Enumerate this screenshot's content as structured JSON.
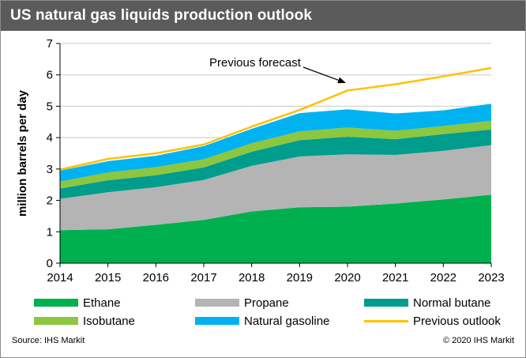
{
  "header": {
    "title": "US natural gas liquids production outlook"
  },
  "footer": {
    "source": "Source: IHS Markit",
    "copyright": "© 2020 IHS Markit"
  },
  "colors": {
    "ethane": "#00b04f",
    "propane": "#b4b4b4",
    "normal_butane": "#009d8c",
    "isobutane": "#8dc63f",
    "natural_gasoline": "#00b3f0",
    "previous_outlook": "#ffc000",
    "title_bar": "#5b5b5b"
  },
  "chart_data": {
    "type": "area",
    "title": "US natural gas liquids production outlook",
    "xlabel": "",
    "ylabel": "million barrels per day",
    "x": [
      2014,
      2015,
      2016,
      2017,
      2018,
      2019,
      2020,
      2021,
      2022,
      2023
    ],
    "xticks": [
      "2014",
      "2015",
      "2016",
      "2017",
      "2018",
      "2019",
      "2020",
      "2021",
      "2022",
      "2023"
    ],
    "yticks": [
      "0",
      "1",
      "2",
      "3",
      "4",
      "5",
      "6",
      "7"
    ],
    "ylim": [
      0,
      7
    ],
    "grid": true,
    "stacked": true,
    "legend_position": "bottom",
    "series": [
      {
        "name": "Ethane",
        "values": [
          1.05,
          1.08,
          1.22,
          1.38,
          1.65,
          1.78,
          1.8,
          1.9,
          2.03,
          2.18
        ]
      },
      {
        "name": "Propane",
        "values": [
          1.0,
          1.18,
          1.2,
          1.27,
          1.45,
          1.62,
          1.67,
          1.55,
          1.55,
          1.58
        ]
      },
      {
        "name": "Normal butane",
        "values": [
          0.33,
          0.38,
          0.38,
          0.4,
          0.45,
          0.52,
          0.56,
          0.5,
          0.53,
          0.5
        ]
      },
      {
        "name": "Isobutane",
        "values": [
          0.22,
          0.25,
          0.26,
          0.26,
          0.27,
          0.28,
          0.29,
          0.27,
          0.26,
          0.28
        ]
      },
      {
        "name": "Natural gasoline",
        "values": [
          0.35,
          0.36,
          0.36,
          0.42,
          0.46,
          0.58,
          0.58,
          0.55,
          0.5,
          0.54
        ]
      }
    ],
    "overlay_line": {
      "name": "Previous outlook",
      "values": [
        2.98,
        3.32,
        3.5,
        3.78,
        4.35,
        4.88,
        5.5,
        5.7,
        5.95,
        6.22
      ]
    },
    "annotations": [
      {
        "text": "Previous forecast",
        "points_to_x": 2020,
        "points_to_y": 5.55
      }
    ]
  }
}
